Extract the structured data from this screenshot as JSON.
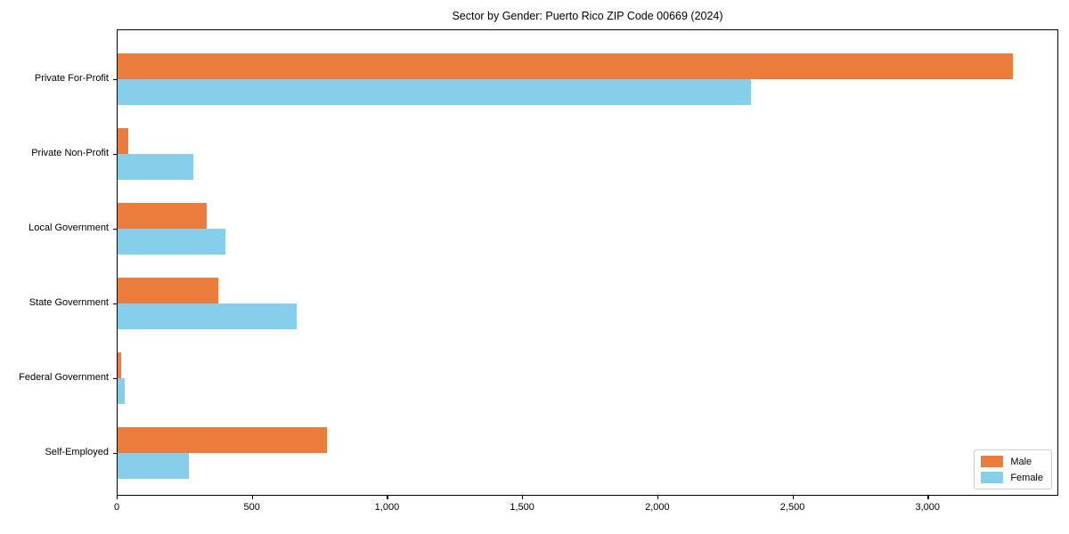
{
  "title": "Sector by Gender: Puerto Rico ZIP Code 00669 (2024)",
  "chart_data": {
    "type": "bar",
    "orientation": "horizontal",
    "title": "Sector by Gender: Puerto Rico ZIP Code 00669 (2024)",
    "xlabel": "",
    "ylabel": "",
    "categories": [
      "Private For-Profit",
      "Private Non-Profit",
      "Local Government",
      "State Government",
      "Federal Government",
      "Self-Employed"
    ],
    "series": [
      {
        "name": "Male",
        "color": "#ec7c3c",
        "values": [
          3311,
          40,
          330,
          372,
          14,
          773
        ]
      },
      {
        "name": "Female",
        "color": "#87ceeb",
        "values": [
          2344,
          279,
          400,
          661,
          26,
          263
        ]
      }
    ],
    "xlim": [
      0,
      3477
    ],
    "x_ticks": [
      0,
      500,
      1000,
      1500,
      2000,
      2500,
      3000
    ],
    "x_tick_labels": [
      "0",
      "500",
      "1,000",
      "1,500",
      "2,000",
      "2,500",
      "3,000"
    ],
    "grid": false,
    "legend": {
      "position": "lower right",
      "entries": [
        "Male",
        "Female"
      ]
    },
    "colors": {
      "male": "#ec7c3c",
      "female": "#87ceeb",
      "spine": "#000000",
      "legend_border": "#cccccc"
    }
  }
}
